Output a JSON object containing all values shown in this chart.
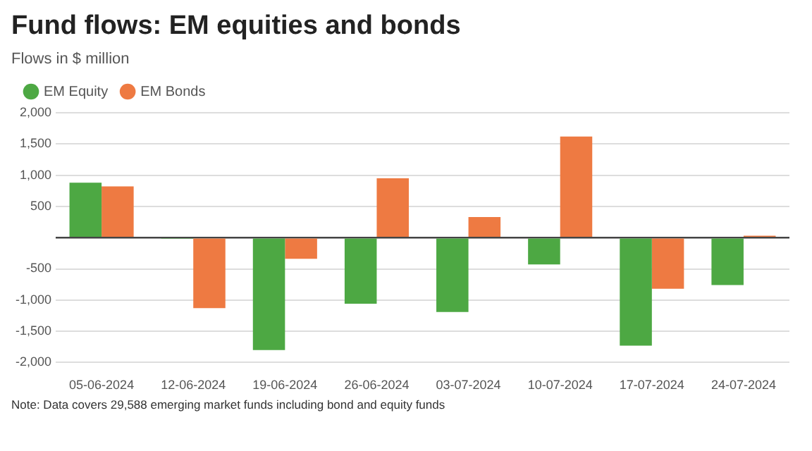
{
  "chart_data": {
    "type": "bar",
    "title": "Fund flows: EM equities and bonds",
    "subtitle": "Flows in $ million",
    "categories": [
      "05-06-2024",
      "12-06-2024",
      "19-06-2024",
      "26-06-2024",
      "03-07-2024",
      "10-07-2024",
      "17-07-2024",
      "24-07-2024"
    ],
    "series": [
      {
        "name": "EM Equity",
        "color": "#4da843",
        "values": [
          880,
          -20,
          -1800,
          -1060,
          -1190,
          -430,
          -1730,
          -760
        ]
      },
      {
        "name": "EM Bonds",
        "color": "#ee7a42",
        "values": [
          820,
          -1130,
          -340,
          950,
          330,
          1620,
          -820,
          30
        ]
      }
    ],
    "ylim": [
      -2000,
      2000
    ],
    "yticks": [
      {
        "value": -2000,
        "label": "-2,000"
      },
      {
        "value": -1500,
        "label": "-1,500"
      },
      {
        "value": -1000,
        "label": "-1,000"
      },
      -500,
      {
        "value": 0,
        "label": null
      },
      500,
      {
        "value": 1000,
        "label": "1,000"
      },
      {
        "value": 1500,
        "label": "1,500"
      },
      {
        "value": 2000,
        "label": "2,000"
      }
    ],
    "grid": "y",
    "legend": "top left",
    "annotations": [
      "Note: Data covers 29,588 emerging market funds including bond and equity funds"
    ]
  }
}
